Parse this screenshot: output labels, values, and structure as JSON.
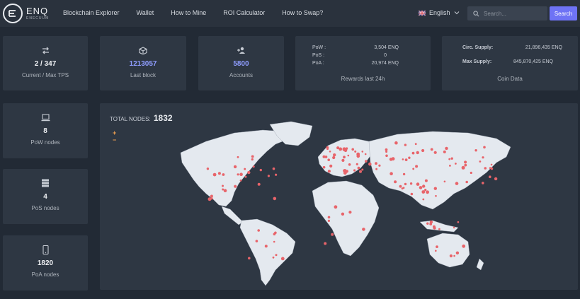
{
  "brand": {
    "name": "ENQ",
    "subtitle": "ENECUUM"
  },
  "nav": {
    "items": [
      "Blockchain Explorer",
      "Wallet",
      "How to Mine",
      "ROI Calculator",
      "How to Swap?"
    ]
  },
  "language": {
    "label": "English",
    "flag_icon": "uk-flag-icon"
  },
  "search": {
    "placeholder": "Search...",
    "button_label": "Search"
  },
  "stats": {
    "tps": {
      "value": "2 / 347",
      "label": "Current / Max TPS",
      "icon": "arrows-swap-icon"
    },
    "last_block": {
      "value": "1213057",
      "label": "Last block",
      "icon": "block-icon"
    },
    "accounts": {
      "value": "5800",
      "label": "Accounts",
      "icon": "users-icon"
    }
  },
  "rewards": {
    "label": "Rewards last 24h",
    "rows": [
      {
        "key": "PoW :",
        "value": "3,504 ENQ"
      },
      {
        "key": "PoS :",
        "value": "0"
      },
      {
        "key": "PoA :",
        "value": "20,974 ENQ"
      }
    ]
  },
  "coin_data": {
    "label": "Coin Data",
    "rows": [
      {
        "key": "Circ. Supply:",
        "value": "21,896,435 ENQ"
      },
      {
        "key": "Max Supply:",
        "value": "845,870,425 ENQ"
      }
    ]
  },
  "nodes": {
    "pow": {
      "value": "8",
      "label": "PoW nodes",
      "icon": "laptop-icon"
    },
    "pos": {
      "value": "4",
      "label": "PoS nodes",
      "icon": "server-icon"
    },
    "poa": {
      "value": "1820",
      "label": "PoA nodes",
      "icon": "phone-icon"
    }
  },
  "map": {
    "total_label": "TOTAL NODES:",
    "total_value": "1832",
    "zoom_in": "+",
    "zoom_out": "−",
    "land_color": "#e4e9ef",
    "node_color": "#e8646a"
  },
  "colors": {
    "background": "#222a35",
    "card": "#2e3743",
    "accent": "#6e73f5",
    "value_blue": "#8f9dff"
  }
}
